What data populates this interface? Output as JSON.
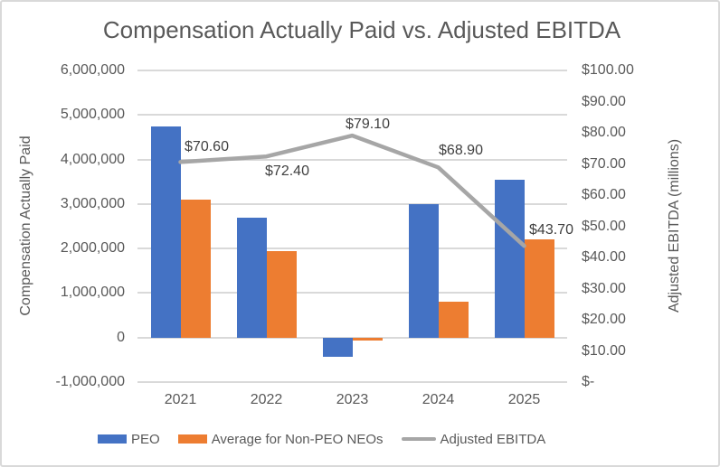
{
  "title": "Compensation Actually Paid vs. Adjusted EBITDA",
  "colors": {
    "peo_bar": "#4472C4",
    "non_peo_bar": "#ED7D31",
    "ebitda_line": "#A6A6A6",
    "gridline": "#D9D9D9",
    "axis_text": "#595959",
    "data_label_text": "#404040",
    "chart_border": "#D9D9D9"
  },
  "chart_data": {
    "type": "bar",
    "subtype": "combo-bar-line-dual-axis",
    "title": "Compensation Actually Paid vs. Adjusted EBITDA",
    "categories": [
      "2021",
      "2022",
      "2023",
      "2024",
      "2025"
    ],
    "series": [
      {
        "name": "PEO",
        "chart": "bar",
        "axis": "left",
        "color": "#4472C4",
        "values": [
          4750000,
          2700000,
          -430000,
          3000000,
          3550000
        ]
      },
      {
        "name": "Average for Non-PEO NEOs",
        "chart": "bar",
        "axis": "left",
        "color": "#ED7D31",
        "values": [
          3100000,
          1950000,
          -60000,
          800000,
          2200000
        ]
      },
      {
        "name": "Adjusted EBITDA",
        "chart": "line",
        "axis": "right",
        "color": "#A6A6A6",
        "values": [
          70.6,
          72.4,
          79.1,
          68.9,
          43.7
        ],
        "data_labels": [
          "$70.60",
          "$72.40",
          "$79.10",
          "$68.90",
          "$43.70"
        ]
      }
    ],
    "left_axis": {
      "title": "Compensation Actually Paid",
      "range": [
        -1000000,
        6000000
      ],
      "tick_step": 1000000,
      "ticks": [
        {
          "label": "6,000,000",
          "value": 6000000
        },
        {
          "label": "5,000,000",
          "value": 5000000
        },
        {
          "label": "4,000,000",
          "value": 4000000
        },
        {
          "label": "3,000,000",
          "value": 3000000
        },
        {
          "label": "2,000,000",
          "value": 2000000
        },
        {
          "label": "1,000,000",
          "value": 1000000
        },
        {
          "label": "0",
          "value": 0
        },
        {
          "label": "-1,000,000",
          "value": -1000000
        }
      ]
    },
    "right_axis": {
      "title": "Adjusted EBITDA (millions)",
      "range": [
        0,
        100
      ],
      "tick_step": 10,
      "ticks": [
        {
          "label": "$100.00",
          "value": 100
        },
        {
          "label": "$90.00",
          "value": 90
        },
        {
          "label": "$80.00",
          "value": 80
        },
        {
          "label": "$70.00",
          "value": 70
        },
        {
          "label": "$60.00",
          "value": 60
        },
        {
          "label": "$50.00",
          "value": 50
        },
        {
          "label": "$40.00",
          "value": 40
        },
        {
          "label": "$30.00",
          "value": 30
        },
        {
          "label": "$20.00",
          "value": 20
        },
        {
          "label": "$10.00",
          "value": 10
        },
        {
          "label": "$-",
          "value": 0
        }
      ]
    },
    "legend": {
      "position": "bottom",
      "entries": [
        "PEO",
        "Average for Non-PEO NEOs",
        "Adjusted EBITDA"
      ]
    },
    "grid": true
  }
}
